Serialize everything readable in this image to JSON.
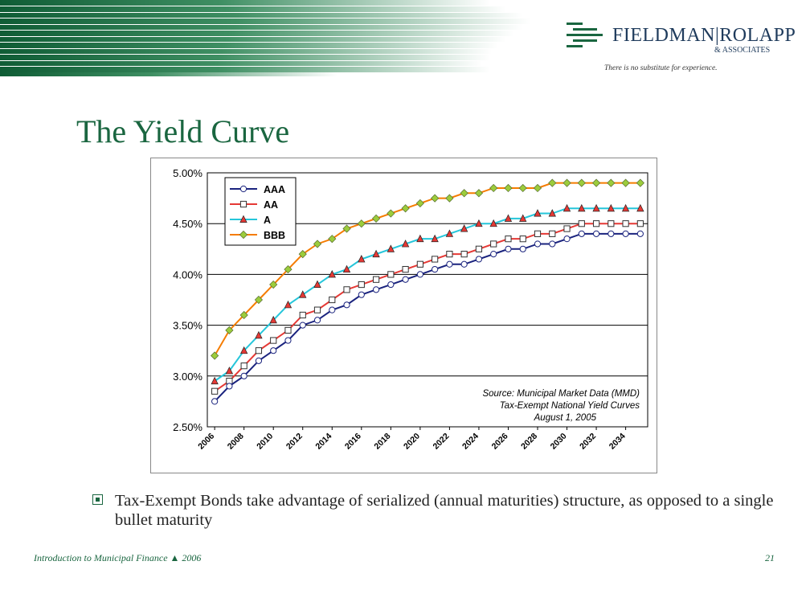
{
  "logo": {
    "name": "FIELDMAN|ROLAPP",
    "sub": "& ASSOCIATES",
    "tagline": "There is no substitute for experience."
  },
  "slide": {
    "title": "The Yield Curve",
    "bullet": "Tax-Exempt Bonds take advantage of  serialized (annual maturities) structure, as opposed to a single bullet maturity"
  },
  "footer": {
    "left": "Introduction to Municipal Finance ▲ 2006",
    "page": "21"
  },
  "colors": {
    "title_green": "#1a6640",
    "AAA": "#1a237e",
    "AA": "#e53935",
    "A": "#26c6da",
    "BBB": "#f57c00"
  },
  "chart_data": {
    "type": "line",
    "title": "",
    "xlabel": "",
    "ylabel": "",
    "ylim": [
      2.5,
      5.0
    ],
    "y_ticks": [
      "2.50%",
      "3.00%",
      "3.50%",
      "4.00%",
      "4.50%",
      "5.00%"
    ],
    "x_ticks": [
      "2006",
      "2008",
      "2010",
      "2012",
      "2014",
      "2016",
      "2018",
      "2020",
      "2022",
      "2024",
      "2026",
      "2028",
      "2030",
      "2032",
      "2034"
    ],
    "x": [
      2006,
      2007,
      2008,
      2009,
      2010,
      2011,
      2012,
      2013,
      2014,
      2015,
      2016,
      2017,
      2018,
      2019,
      2020,
      2021,
      2022,
      2023,
      2024,
      2025,
      2026,
      2027,
      2028,
      2029,
      2030,
      2031,
      2032,
      2033,
      2034,
      2035
    ],
    "grid": "horizontal",
    "legend_position": "top-left",
    "series": [
      {
        "name": "AAA",
        "color": "#1a237e",
        "marker": "circle",
        "values": [
          2.75,
          2.9,
          3.0,
          3.15,
          3.25,
          3.35,
          3.5,
          3.55,
          3.65,
          3.7,
          3.8,
          3.85,
          3.9,
          3.95,
          4.0,
          4.05,
          4.1,
          4.1,
          4.15,
          4.2,
          4.25,
          4.25,
          4.3,
          4.3,
          4.35,
          4.4,
          4.4,
          4.4,
          4.4,
          4.4
        ]
      },
      {
        "name": "AA",
        "color": "#e53935",
        "marker": "square",
        "values": [
          2.85,
          2.95,
          3.1,
          3.25,
          3.35,
          3.45,
          3.6,
          3.65,
          3.75,
          3.85,
          3.9,
          3.95,
          4.0,
          4.05,
          4.1,
          4.15,
          4.2,
          4.2,
          4.25,
          4.3,
          4.35,
          4.35,
          4.4,
          4.4,
          4.45,
          4.5,
          4.5,
          4.5,
          4.5,
          4.5
        ]
      },
      {
        "name": "A",
        "color": "#26c6da",
        "marker": "triangle",
        "values": [
          2.95,
          3.05,
          3.25,
          3.4,
          3.55,
          3.7,
          3.8,
          3.9,
          4.0,
          4.05,
          4.15,
          4.2,
          4.25,
          4.3,
          4.35,
          4.35,
          4.4,
          4.45,
          4.5,
          4.5,
          4.55,
          4.55,
          4.6,
          4.6,
          4.65,
          4.65,
          4.65,
          4.65,
          4.65,
          4.65
        ]
      },
      {
        "name": "BBB",
        "color": "#f57c00",
        "marker": "diamond",
        "values": [
          3.2,
          3.45,
          3.6,
          3.75,
          3.9,
          4.05,
          4.2,
          4.3,
          4.35,
          4.45,
          4.5,
          4.55,
          4.6,
          4.65,
          4.7,
          4.75,
          4.75,
          4.8,
          4.8,
          4.85,
          4.85,
          4.85,
          4.85,
          4.9,
          4.9,
          4.9,
          4.9,
          4.9,
          4.9,
          4.9
        ]
      }
    ],
    "annotation": [
      "Source: Municipal Market Data (MMD)",
      "Tax-Exempt National Yield Curves",
      "August 1, 2005"
    ]
  }
}
